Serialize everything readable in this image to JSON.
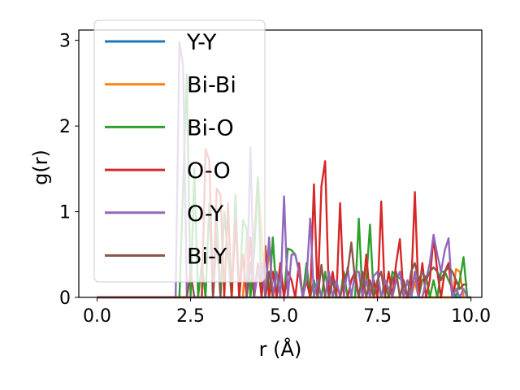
{
  "chart_data": {
    "type": "line",
    "title": "",
    "xlabel": "r (Å)",
    "ylabel": "g(r)",
    "xlim": [
      -0.49,
      10.29
    ],
    "ylim": [
      0,
      3.12
    ],
    "xticks": [
      "0.0",
      "2.5",
      "5.0",
      "7.5",
      "10.0"
    ],
    "xtick_values": [
      0,
      2.5,
      5,
      7.5,
      10
    ],
    "yticks": [
      "0",
      "1",
      "2",
      "3"
    ],
    "ytick_values": [
      0,
      1,
      2,
      3
    ],
    "grid": false,
    "legend_position": "upper-left",
    "series": [
      {
        "name": "Y-Y",
        "color": "#1f77b4",
        "x": [
          0,
          10
        ],
        "y": [
          0,
          0
        ]
      },
      {
        "name": "Bi-Bi",
        "color": "#ff7f0e",
        "x": [
          0,
          3.9,
          4.0,
          4.1,
          4.3,
          4.5,
          4.6,
          4.7,
          4.8,
          8.4,
          8.5,
          8.6,
          9.5,
          9.6,
          9.7,
          9.8,
          9.9,
          10.0
        ],
        "y": [
          0,
          0,
          0.7,
          0,
          1.4,
          0,
          0.6,
          0,
          0,
          0,
          0.18,
          0,
          0,
          0.33,
          0.3,
          0,
          0,
          0
        ]
      },
      {
        "name": "Bi-O",
        "color": "#2ca02c",
        "x": [
          0,
          2.1,
          2.2,
          2.4,
          2.5,
          2.6,
          2.7,
          2.8,
          2.9,
          3.0,
          3.1,
          3.2,
          3.3,
          3.4,
          3.5,
          3.6,
          3.7,
          3.8,
          3.9,
          4.0,
          4.1,
          4.2,
          4.3,
          4.4,
          4.5,
          4.6,
          4.7,
          4.8,
          4.9,
          5.0,
          5.1,
          5.2,
          5.3,
          5.4,
          5.5,
          5.6,
          5.7,
          5.8,
          5.9,
          6.0,
          6.1,
          6.2,
          6.3,
          6.4,
          6.5,
          6.6,
          6.7,
          6.8,
          6.9,
          7.0,
          7.1,
          7.2,
          7.3,
          7.4,
          7.5,
          7.6,
          7.7,
          7.8,
          7.9,
          8.0,
          8.1,
          8.2,
          8.3,
          8.4,
          8.5,
          8.6,
          8.7,
          8.8,
          8.9,
          9.0,
          9.1,
          9.2,
          9.3,
          9.4,
          9.5,
          9.6,
          9.7,
          9.8,
          9.9,
          10.0
        ],
        "y": [
          0,
          0,
          0,
          2.6,
          0,
          1.5,
          0,
          0.4,
          0,
          1.1,
          0,
          0.9,
          0,
          1.0,
          0.5,
          0,
          1.2,
          0,
          0.9,
          0.8,
          0,
          0.5,
          1.4,
          0,
          0.6,
          0,
          0.7,
          0,
          0.3,
          0,
          0.57,
          0.55,
          0.5,
          0.3,
          0,
          0.4,
          0,
          0.2,
          0,
          0,
          0.3,
          0,
          0,
          0,
          0,
          0.3,
          0,
          0,
          0,
          0.92,
          0,
          0.2,
          0.85,
          0,
          0.2,
          0,
          0.2,
          0,
          0.3,
          0.25,
          0.22,
          0.2,
          0,
          0,
          0.3,
          0,
          0.2,
          0.25,
          0,
          0.2,
          0,
          0.3,
          0.3,
          0.2,
          0.1,
          0,
          0.2,
          0.47,
          0,
          0
        ]
      },
      {
        "name": "O-O",
        "color": "#d62728",
        "x": [
          0,
          2.8,
          2.9,
          3.0,
          3.1,
          3.2,
          3.3,
          3.4,
          3.5,
          3.6,
          3.7,
          3.8,
          3.9,
          4.0,
          4.1,
          4.2,
          4.3,
          4.4,
          4.5,
          4.6,
          4.7,
          4.8,
          4.9,
          5.0,
          5.1,
          5.2,
          5.3,
          5.4,
          5.5,
          5.6,
          5.7,
          5.8,
          5.9,
          6.0,
          6.1,
          6.2,
          6.3,
          6.4,
          6.5,
          6.6,
          6.7,
          6.8,
          6.9,
          7.0,
          7.1,
          7.2,
          7.3,
          7.4,
          7.5,
          7.6,
          7.7,
          7.8,
          7.9,
          8.0,
          8.1,
          8.2,
          8.3,
          8.4,
          8.5,
          8.6,
          8.7,
          8.8,
          8.9,
          9.0,
          9.1,
          9.2,
          9.3,
          9.4,
          9.5,
          9.6,
          9.7,
          9.8,
          9.9
        ],
        "y": [
          0,
          0,
          1.73,
          1.6,
          0,
          1.27,
          1.2,
          0,
          1.1,
          0,
          0.9,
          0,
          0.5,
          0,
          0.7,
          0,
          0.4,
          0,
          0.6,
          0,
          0.3,
          0,
          0.4,
          0,
          0.3,
          0.2,
          0,
          0.4,
          0,
          0.2,
          0,
          1.32,
          0,
          1.3,
          1.59,
          0,
          0.3,
          0,
          1.1,
          0,
          0,
          0.2,
          0.3,
          0,
          0,
          0.5,
          0,
          0.2,
          0,
          1.12,
          0,
          0.3,
          0,
          0.4,
          0.68,
          0,
          0,
          0.1,
          1.23,
          0,
          0.4,
          0,
          0.2,
          0.7,
          0.3,
          0,
          0.3,
          0.4,
          0,
          0.2,
          0.1,
          0.15,
          0.15
        ]
      },
      {
        "name": "O-Y",
        "color": "#9467bd",
        "x": [
          0,
          2.1,
          2.2,
          2.3,
          2.4,
          3.9,
          4.0,
          4.1,
          4.2,
          4.3,
          4.4,
          4.5,
          4.6,
          4.7,
          4.8,
          4.9,
          5.0,
          5.1,
          5.2,
          5.3,
          5.4,
          5.5,
          5.6,
          5.7,
          5.8,
          5.9,
          6.0,
          6.1,
          6.2,
          6.3,
          6.4,
          6.5,
          6.6,
          6.7,
          6.8,
          6.9,
          7.0,
          7.1,
          7.2,
          7.3,
          7.4,
          7.5,
          7.6,
          7.7,
          7.8,
          7.9,
          8.0,
          8.1,
          8.2,
          8.3,
          8.4,
          8.5,
          8.6,
          8.7,
          8.8,
          8.9,
          9.0,
          9.1,
          9.2,
          9.3,
          9.4,
          9.5,
          9.6,
          9.7,
          9.8,
          9.9
        ],
        "y": [
          0,
          0,
          2.98,
          2.7,
          0,
          0,
          0,
          1.75,
          0,
          0.3,
          0.4,
          0,
          0.7,
          0,
          0.3,
          0,
          1.18,
          0,
          0.5,
          0.5,
          0.3,
          0,
          0.2,
          0.92,
          0,
          0.2,
          0,
          0,
          0.3,
          0,
          0.2,
          0,
          0,
          0.35,
          0,
          0.3,
          0.3,
          0,
          0.2,
          0,
          0.25,
          0.3,
          0,
          0.2,
          0.1,
          0,
          0.2,
          0.3,
          0,
          0.2,
          0,
          0.3,
          0,
          0,
          0.2,
          0.4,
          0.73,
          0.5,
          0.3,
          0.55,
          0.69,
          0,
          0.1,
          0,
          0.1,
          0
        ]
      },
      {
        "name": "Bi-Y",
        "color": "#8c564b",
        "x": [
          0,
          2.4,
          2.5,
          2.6,
          3.1,
          3.2,
          3.3,
          4.0,
          4.1,
          4.2,
          4.5,
          4.6,
          4.7,
          5.8,
          5.9,
          6.0,
          6.1,
          6.2,
          6.3,
          6.4,
          6.5,
          6.6,
          6.7,
          6.8,
          6.9,
          7.0,
          7.1,
          7.2,
          7.3,
          7.4,
          7.5,
          7.6,
          7.7,
          7.8,
          7.9,
          8.0,
          8.1,
          8.2,
          8.3,
          8.4,
          8.5,
          8.6,
          8.7,
          8.8,
          8.9,
          9.0,
          9.1,
          9.2,
          9.3,
          9.4,
          9.5,
          9.6,
          9.7,
          9.8,
          9.9
        ],
        "y": [
          0,
          0,
          0.3,
          0,
          0,
          0.7,
          0,
          0,
          0.4,
          0,
          0,
          0.3,
          0,
          0,
          0,
          0.38,
          0,
          0,
          0.2,
          0,
          0,
          0.2,
          0.3,
          0.64,
          0.2,
          0,
          0.3,
          0,
          0.2,
          0,
          0.2,
          0.3,
          0,
          0,
          0.2,
          0.3,
          0,
          0.2,
          0,
          0.3,
          0.4,
          0.2,
          0.3,
          0.2,
          0.3,
          0.35,
          0.3,
          0.2,
          0.3,
          0.35,
          0.3,
          0.2,
          0.1,
          0.15,
          0.15
        ]
      }
    ]
  }
}
